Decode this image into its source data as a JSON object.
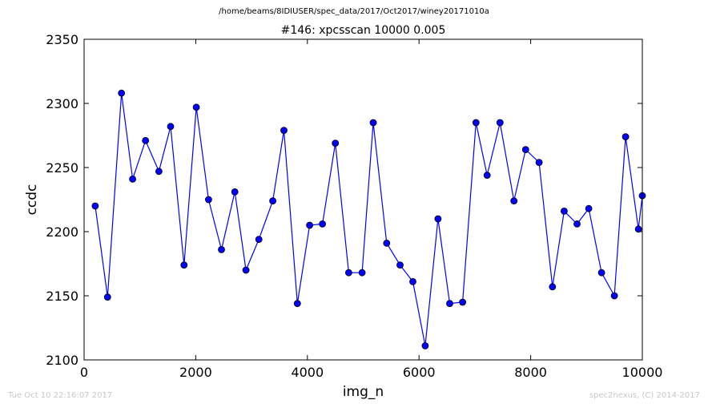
{
  "figure": {
    "path_title": "/home/beams/8IDIUSER/spec_data/2017/Oct2017/winey20171010a",
    "footer_left": "Tue Oct 10 22:16:07 2017",
    "footer_right": "spec2nexus, (C) 2014-2017"
  },
  "chart_data": {
    "type": "line",
    "title": "#146: xpcsscan 10000 0.005",
    "xlabel": "img_n",
    "ylabel": "ccdc",
    "xlim": [
      0,
      10000
    ],
    "ylim": [
      2100,
      2350
    ],
    "xticks": [
      0,
      2000,
      4000,
      6000,
      8000,
      10000
    ],
    "yticks": [
      2100,
      2150,
      2200,
      2250,
      2300,
      2350
    ],
    "grid": false,
    "marker": "circle",
    "color": "#0000ff",
    "x": [
      200,
      420,
      670,
      870,
      1100,
      1340,
      1550,
      1790,
      2010,
      2230,
      2460,
      2700,
      2900,
      3130,
      3380,
      3580,
      3820,
      4040,
      4270,
      4500,
      4740,
      4980,
      5180,
      5420,
      5660,
      5890,
      6110,
      6340,
      6550,
      6780,
      7020,
      7220,
      7450,
      7700,
      7910,
      8150,
      8390,
      8600,
      8830,
      9040,
      9270,
      9500,
      9700,
      9930,
      10000
    ],
    "y": [
      2220,
      2149,
      2308,
      2241,
      2271,
      2247,
      2282,
      2174,
      2297,
      2225,
      2186,
      2231,
      2170,
      2194,
      2224,
      2279,
      2144,
      2205,
      2206,
      2269,
      2168,
      2168,
      2285,
      2191,
      2174,
      2161,
      2111,
      2210,
      2144,
      2145,
      2285,
      2244,
      2285,
      2224,
      2264,
      2254,
      2157,
      2216,
      2206,
      2218,
      2168,
      2150,
      2274,
      2202,
      2228
    ]
  }
}
